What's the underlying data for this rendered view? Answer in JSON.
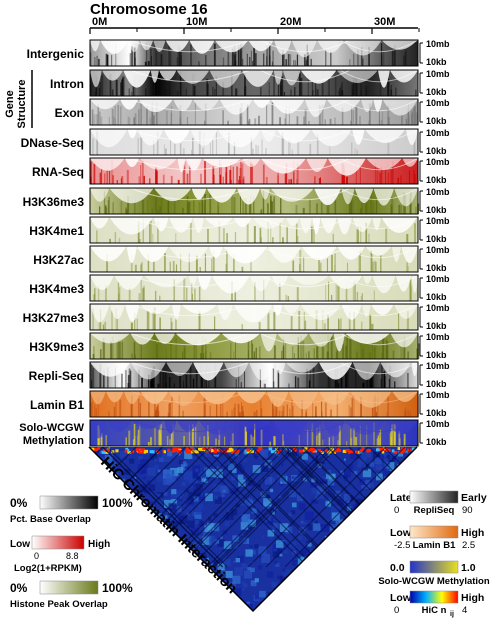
{
  "header": {
    "title": "Chromosome 16",
    "axis_ticks": [
      "0M",
      "10M",
      "20M",
      "30M"
    ]
  },
  "tracks": [
    {
      "label": "Intergenic",
      "style": "gray-heavy"
    },
    {
      "label": "Intron",
      "style": "gray-heavy"
    },
    {
      "label": "Exon",
      "style": "gray-light"
    },
    {
      "label": "DNase-Seq",
      "style": "gray-faint"
    },
    {
      "label": "RNA-Seq",
      "style": "red"
    },
    {
      "label": "H3K36me3",
      "style": "olive"
    },
    {
      "label": "H3K4me1",
      "style": "olive-faint"
    },
    {
      "label": "H3K27ac",
      "style": "olive-faint"
    },
    {
      "label": "H3K4me3",
      "style": "olive-faint"
    },
    {
      "label": "H3K27me3",
      "style": "olive-faint"
    },
    {
      "label": "H3K9me3",
      "style": "olive"
    },
    {
      "label": "Repli-Seq",
      "style": "repli"
    },
    {
      "label": "Lamin B1",
      "style": "orange"
    },
    {
      "label": "Solo-WCGW Methylation",
      "label_lines": [
        "Solo-WCGW",
        "Methylation"
      ],
      "style": "methyl"
    }
  ],
  "group_label": {
    "lines": [
      "Gene",
      "Structure"
    ]
  },
  "scale_labels": {
    "top": "10mb",
    "bottom": "10kb"
  },
  "hic": {
    "title": "HiC Chromatin Interaction"
  },
  "legends_left": [
    {
      "low": "0%",
      "high": "100%",
      "caption": "Pct. Base Overlap",
      "colors": [
        "#ffffff",
        "#000000"
      ]
    },
    {
      "low": "Low",
      "high": "High",
      "low_value": "0",
      "high_value": "8.8",
      "caption": "Log2(1+RPKM)",
      "colors": [
        "#ffffff",
        "#cc0000"
      ]
    },
    {
      "low": "0%",
      "high": "100%",
      "caption": "Histone Peak Overlap",
      "colors": [
        "#ffffff",
        "#6b7a1a"
      ]
    }
  ],
  "legends_right": [
    {
      "low": "Late",
      "high": "Early",
      "low_value": "0",
      "high_value": "90",
      "caption": "RepliSeq",
      "colors": [
        "#ffffff",
        "#222222"
      ]
    },
    {
      "low": "Low",
      "high": "High",
      "low_value": "-2.5",
      "high_value": "2.5",
      "caption": "Lamin B1",
      "colors": [
        "#fde8c8",
        "#e06a10"
      ]
    },
    {
      "low": "0.0",
      "high": "1.0",
      "caption": "Solo-WCGW Methylation",
      "colors": [
        "#2233cc",
        "#e8e020"
      ]
    },
    {
      "low": "Low",
      "high": "High",
      "low_value": "0",
      "high_value": "4",
      "caption": "HiC n",
      "caption_sub": "ij",
      "colors": [
        "#0000aa",
        "#00b0ff",
        "#ffff00",
        "#ff0000"
      ]
    }
  ],
  "colors": {
    "gray": "#000000",
    "red": "#cc0000",
    "olive": "#6b7a1a",
    "orange": "#e07020",
    "methyl_blue": "#2233cc",
    "methyl_yellow": "#e8d830",
    "hic_blue": "#1830a0"
  }
}
